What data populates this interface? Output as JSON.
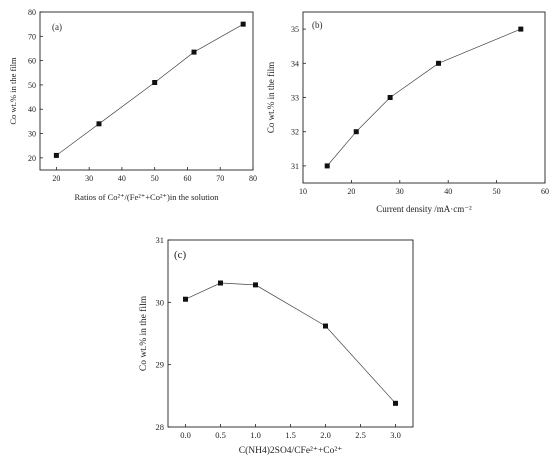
{
  "chart_data": [
    {
      "type": "line",
      "panel_label": "(a)",
      "xlabel": "Ratios of Co²⁺/(Fe²⁺+Co²⁺)in the solution",
      "ylabel": "Co wt.% in the film",
      "xlim": [
        15,
        80
      ],
      "ylim": [
        15,
        80
      ],
      "xticks": [
        20,
        30,
        40,
        50,
        60,
        70,
        80
      ],
      "yticks": [
        20,
        30,
        40,
        50,
        60,
        70,
        80
      ],
      "grid": false,
      "series": [
        {
          "x": [
            20,
            33,
            50,
            62,
            77
          ],
          "values": [
            21,
            34,
            51,
            63.5,
            75
          ]
        }
      ]
    },
    {
      "type": "line",
      "panel_label": "(b)",
      "xlabel": "Current density /mA·cm⁻²",
      "ylabel": "Co wt.% in the film",
      "xlim": [
        10,
        60
      ],
      "ylim": [
        30.5,
        35.5
      ],
      "xticks": [
        10,
        20,
        30,
        40,
        50,
        60
      ],
      "yticks": [
        31,
        32,
        33,
        34,
        35
      ],
      "grid": false,
      "series": [
        {
          "x": [
            15,
            21,
            28,
            38,
            55
          ],
          "values": [
            31,
            32,
            33,
            34,
            35
          ]
        }
      ]
    },
    {
      "type": "line",
      "panel_label": "(c)",
      "xlabel": "C(NH4)2SO4/CFe²⁺+Co²⁺",
      "ylabel": "Co wt.% in the film",
      "xlim": [
        -0.25,
        3.25
      ],
      "ylim": [
        28,
        31
      ],
      "xticks": [
        "0.0",
        "0.5",
        "1.0",
        "1.5",
        "2.0",
        "2.5",
        "3.0"
      ],
      "yticks": [
        28,
        29,
        30,
        31
      ],
      "grid": false,
      "series": [
        {
          "x": [
            0,
            0.5,
            1.0,
            2.0,
            3.0
          ],
          "values": [
            30.05,
            30.31,
            30.28,
            29.62,
            28.38
          ]
        }
      ]
    }
  ]
}
